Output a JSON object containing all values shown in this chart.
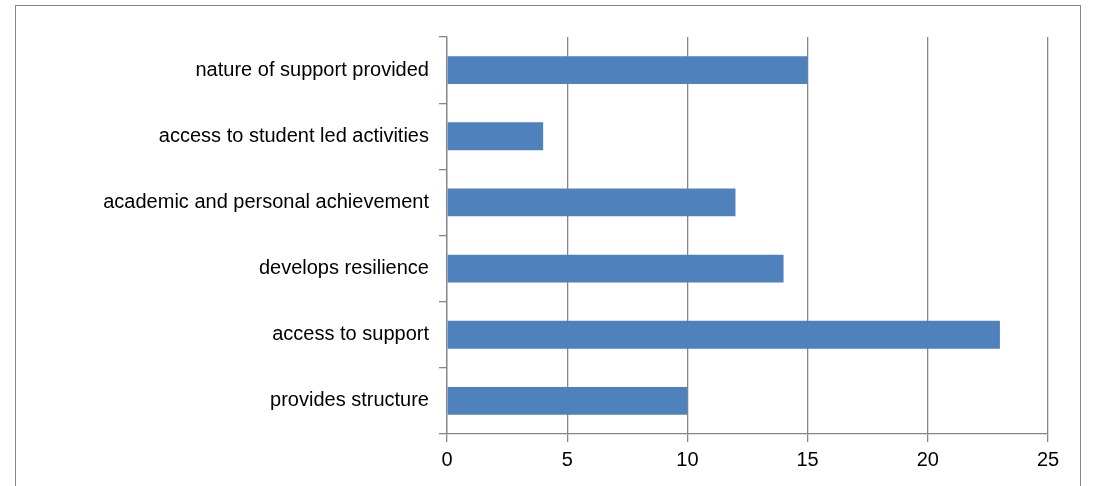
{
  "chart_data": {
    "type": "bar",
    "orientation": "horizontal",
    "categories": [
      "nature of support provided",
      "access to student led activities",
      "academic and personal achievement",
      "develops resilience",
      "access to support",
      "provides structure"
    ],
    "values": [
      15,
      4,
      12,
      14,
      23,
      10
    ],
    "color": "#4f81bd",
    "xlim": [
      0,
      25
    ],
    "xticks": [
      0,
      5,
      10,
      15,
      20,
      25
    ],
    "grid": "x",
    "legend": false
  }
}
